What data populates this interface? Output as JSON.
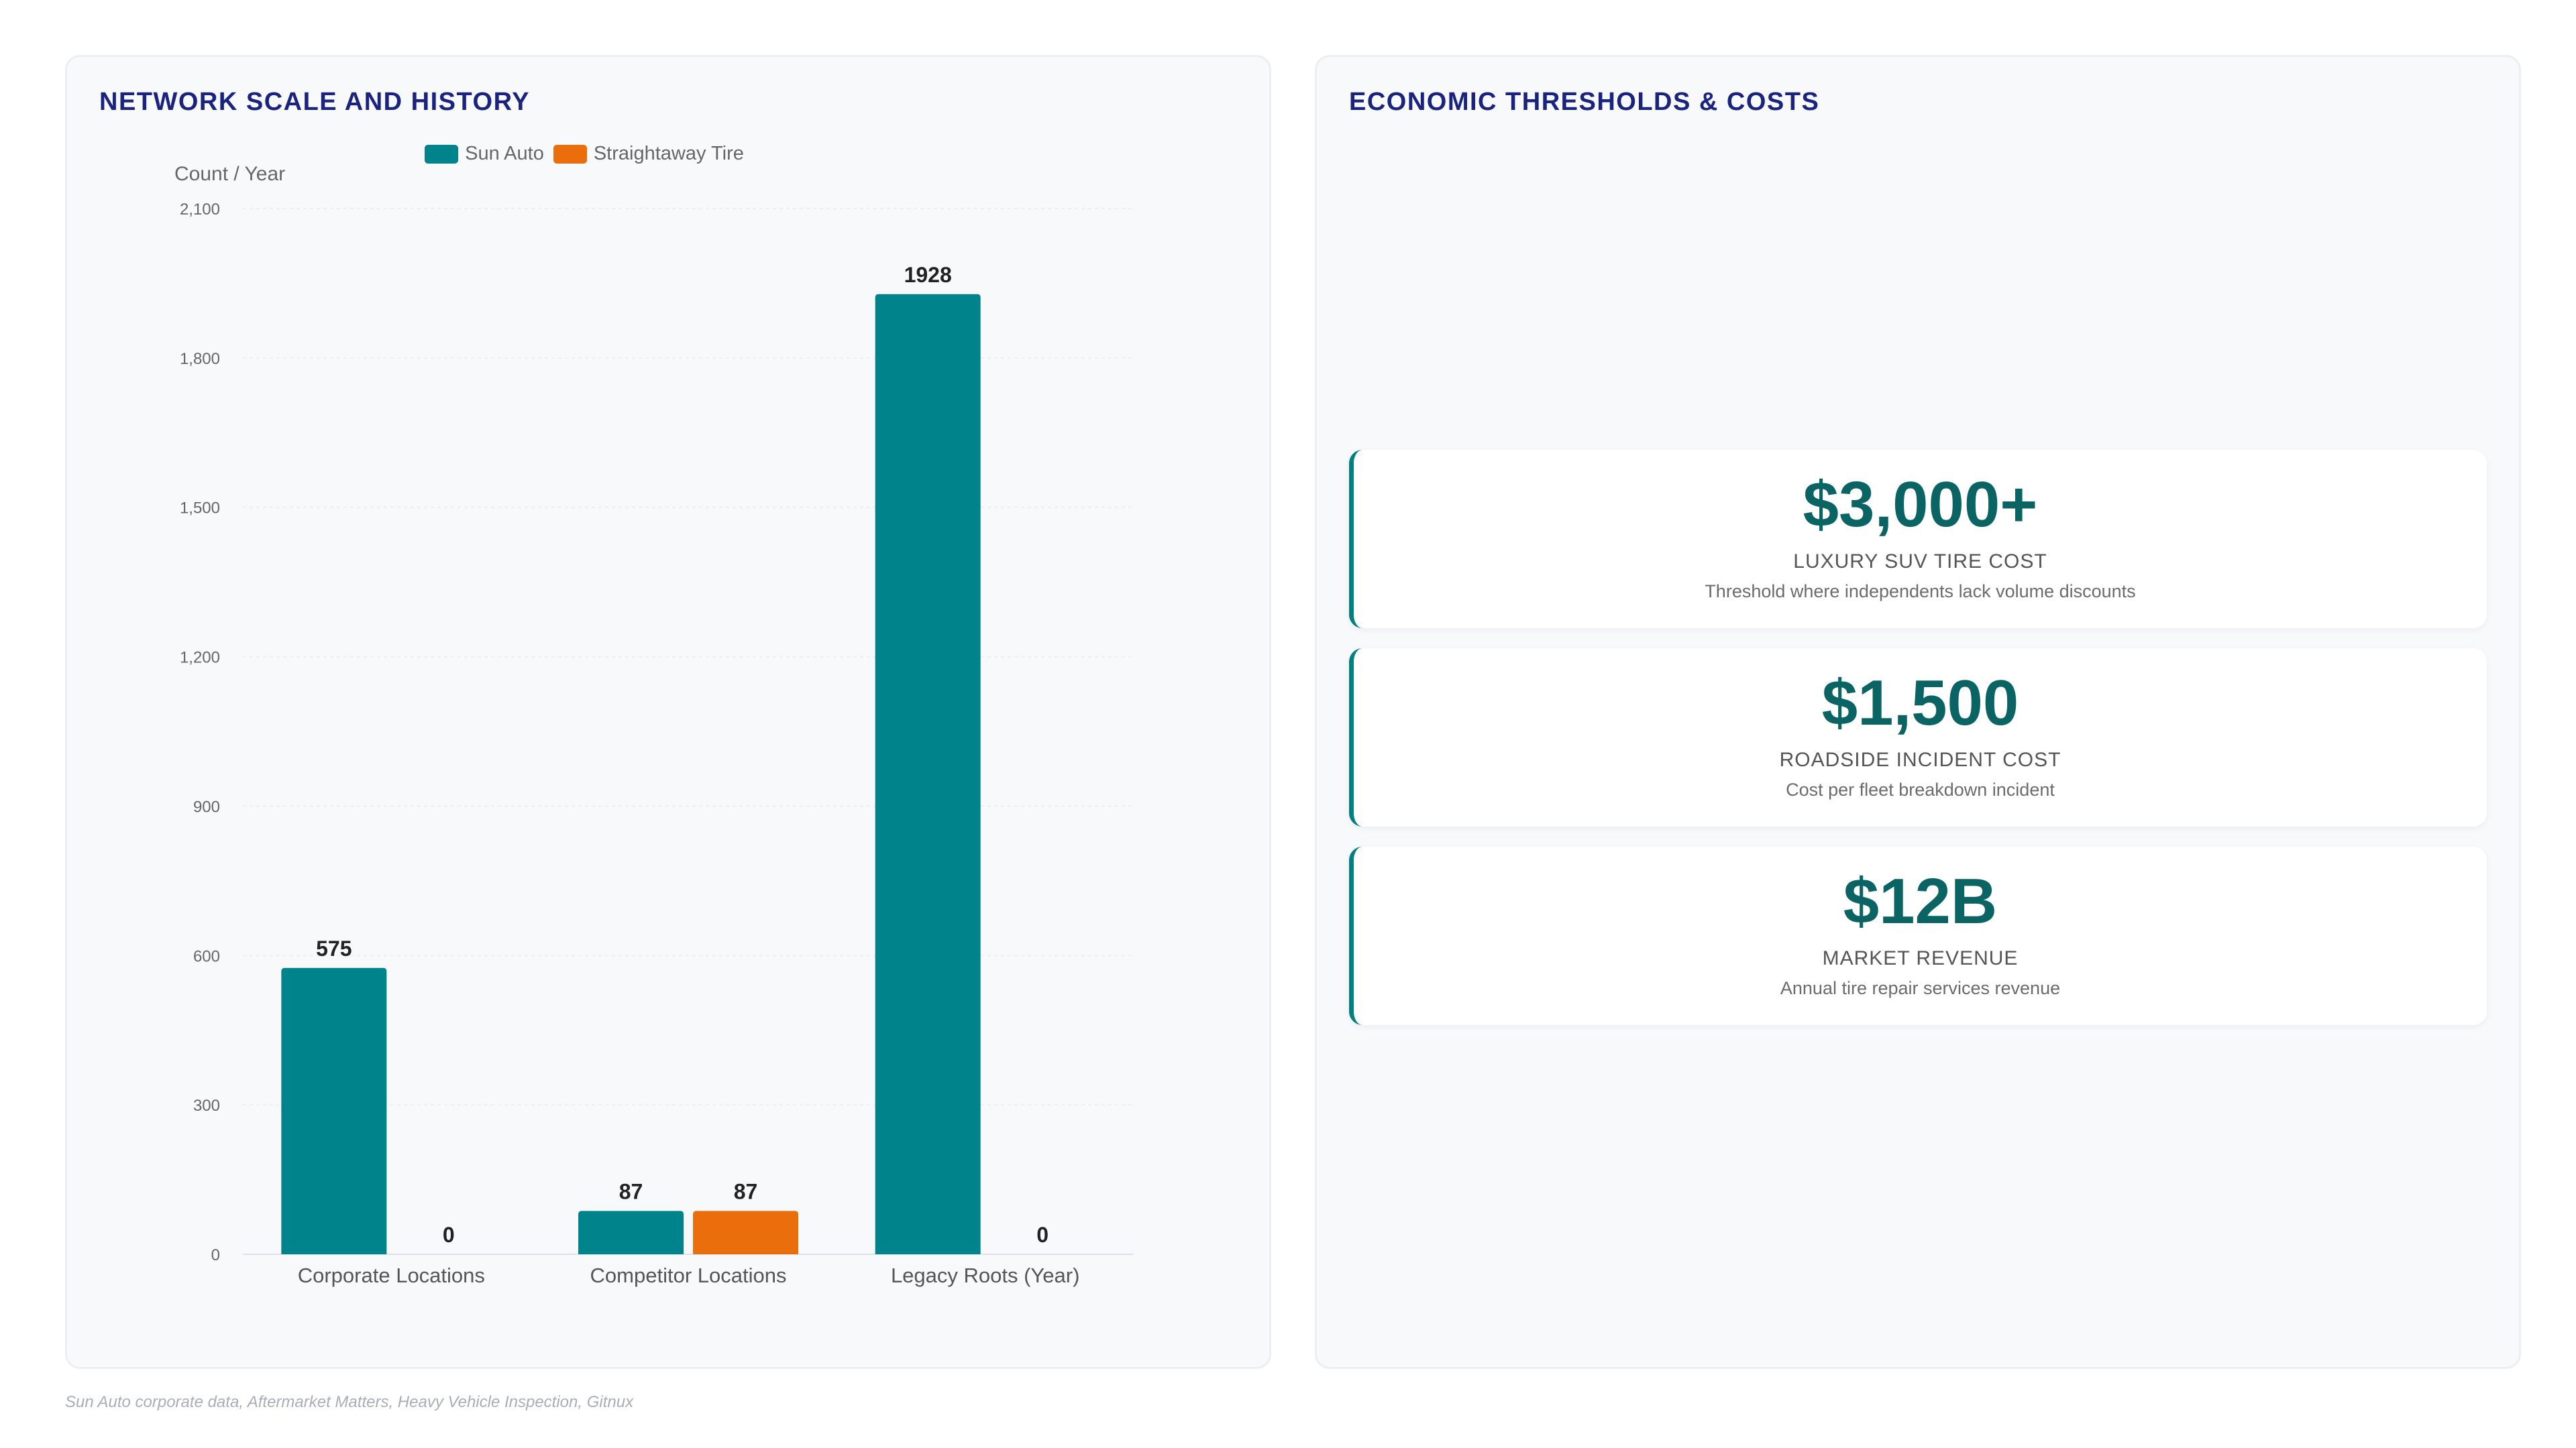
{
  "left_panel": {
    "title": "NETWORK SCALE AND HISTORY"
  },
  "right_panel": {
    "title": "ECONOMIC THRESHOLDS & COSTS",
    "cards": [
      {
        "value": "$3,000+",
        "label": "LUXURY SUV TIRE COST",
        "description": "Threshold where independents lack volume discounts"
      },
      {
        "value": "$1,500",
        "label": "ROADSIDE INCIDENT COST",
        "description": "Cost per fleet breakdown incident"
      },
      {
        "value": "$12B",
        "label": "MARKET REVENUE",
        "description": "Annual tire repair services revenue"
      }
    ]
  },
  "source": "Sun Auto corporate data, Aftermarket Matters, Heavy Vehicle Inspection, Gitnux",
  "chart_data": {
    "type": "bar",
    "title": "",
    "ylabel": "Count / Year",
    "xlabel": "",
    "categories": [
      "Corporate Locations",
      "Competitor Locations",
      "Legacy Roots (Year)"
    ],
    "series": [
      {
        "name": "Sun Auto",
        "color": "#00838a",
        "values": [
          575,
          87,
          1928
        ]
      },
      {
        "name": "Straightaway Tire",
        "color": "#ea6f0c",
        "values": [
          0,
          87,
          0
        ]
      }
    ],
    "ylim": [
      0,
      2100
    ],
    "yticks": [
      0,
      300,
      600,
      900,
      1200,
      1500,
      1800,
      2100
    ],
    "ytick_labels": [
      "0",
      "300",
      "600",
      "900",
      "1,200",
      "1,500",
      "1,800",
      "2,100"
    ],
    "grid": true,
    "legend": "top-center",
    "data_labels": true
  }
}
